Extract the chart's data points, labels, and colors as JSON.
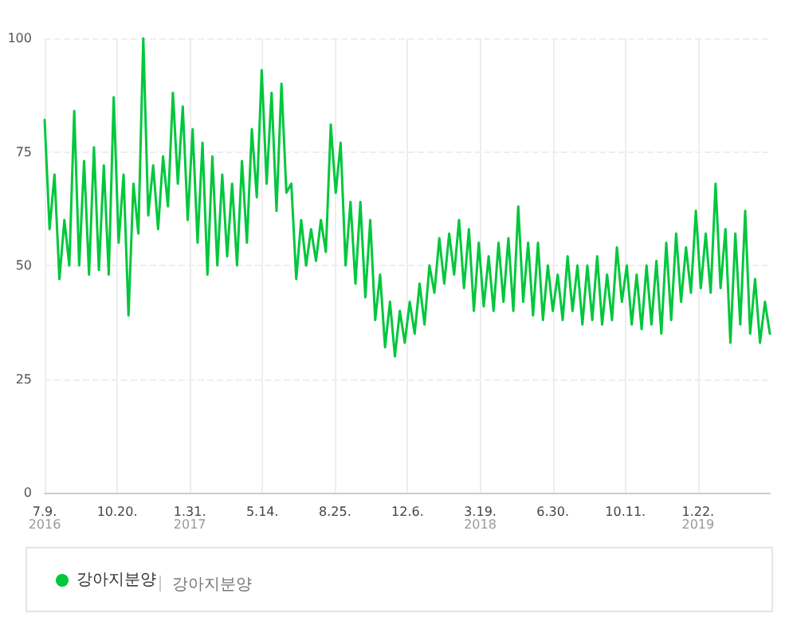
{
  "chart_data": {
    "type": "line",
    "legend": "bottom",
    "grid": true,
    "marker": "none",
    "line_style": "solid",
    "annotations": [
      "강아지분양"
    ],
    "xlim": [
      "2016-07-09",
      "2019-05-04"
    ],
    "xticks": [
      {
        "value": "2016-07-09",
        "label": "7.9.\n2016"
      },
      {
        "value": "2016-10-20",
        "label": "10.20."
      },
      {
        "value": "2017-01-31",
        "label": "1.31.\n2017"
      },
      {
        "value": "2017-05-14",
        "label": "5.14."
      },
      {
        "value": "2017-08-25",
        "label": "8.25."
      },
      {
        "value": "2017-12-06",
        "label": "12.6."
      },
      {
        "value": "2018-03-19",
        "label": "3.19.\n2018"
      },
      {
        "value": "2018-06-30",
        "label": "6.30."
      },
      {
        "value": "2018-10-11",
        "label": "10.11."
      },
      {
        "value": "2019-01-22",
        "label": "1.22.\n2019"
      }
    ],
    "ylim": [
      0,
      100
    ],
    "yticks": [
      0,
      25,
      50,
      75,
      100
    ],
    "x": [
      "2016-07-09",
      "2016-07-16",
      "2016-07-23",
      "2016-07-30",
      "2016-08-06",
      "2016-08-13",
      "2016-08-20",
      "2016-08-27",
      "2016-09-03",
      "2016-09-10",
      "2016-09-17",
      "2016-09-24",
      "2016-10-01",
      "2016-10-08",
      "2016-10-15",
      "2016-10-22",
      "2016-10-29",
      "2016-11-05",
      "2016-11-12",
      "2016-11-19",
      "2016-11-26",
      "2016-12-03",
      "2016-12-10",
      "2016-12-17",
      "2016-12-24",
      "2016-12-31",
      "2017-01-07",
      "2017-01-14",
      "2017-01-21",
      "2017-01-28",
      "2017-02-04",
      "2017-02-11",
      "2017-02-18",
      "2017-02-25",
      "2017-03-04",
      "2017-03-11",
      "2017-03-18",
      "2017-03-25",
      "2017-04-01",
      "2017-04-08",
      "2017-04-15",
      "2017-04-22",
      "2017-04-29",
      "2017-05-06",
      "2017-05-13",
      "2017-05-20",
      "2017-05-27",
      "2017-06-03",
      "2017-06-10",
      "2017-06-17",
      "2017-06-24",
      "2017-07-01",
      "2017-07-08",
      "2017-07-15",
      "2017-07-22",
      "2017-07-29",
      "2017-08-05",
      "2017-08-12",
      "2017-08-19",
      "2017-08-26",
      "2017-09-02",
      "2017-09-09",
      "2017-09-16",
      "2017-09-23",
      "2017-09-30",
      "2017-10-07",
      "2017-10-14",
      "2017-10-21",
      "2017-10-28",
      "2017-11-04",
      "2017-11-11",
      "2017-11-18",
      "2017-11-25",
      "2017-12-02",
      "2017-12-09",
      "2017-12-16",
      "2017-12-23",
      "2017-12-30",
      "2018-01-06",
      "2018-01-13",
      "2018-01-20",
      "2018-01-27",
      "2018-02-03",
      "2018-02-10",
      "2018-02-17",
      "2018-02-24",
      "2018-03-03",
      "2018-03-10",
      "2018-03-17",
      "2018-03-24",
      "2018-03-31",
      "2018-04-07",
      "2018-04-14",
      "2018-04-21",
      "2018-04-28",
      "2018-05-05",
      "2018-05-12",
      "2018-05-19",
      "2018-05-26",
      "2018-06-02",
      "2018-06-09",
      "2018-06-16",
      "2018-06-23",
      "2018-06-30",
      "2018-07-07",
      "2018-07-14",
      "2018-07-21",
      "2018-07-28",
      "2018-08-04",
      "2018-08-11",
      "2018-08-18",
      "2018-08-25",
      "2018-09-01",
      "2018-09-08",
      "2018-09-15",
      "2018-09-22",
      "2018-09-29",
      "2018-10-06",
      "2018-10-13",
      "2018-10-20",
      "2018-10-27",
      "2018-11-03",
      "2018-11-10",
      "2018-11-17",
      "2018-11-24",
      "2018-12-01",
      "2018-12-08",
      "2018-12-15",
      "2018-12-22",
      "2018-12-29",
      "2019-01-05",
      "2019-01-12",
      "2019-01-19",
      "2019-01-26",
      "2019-02-02",
      "2019-02-09",
      "2019-02-16",
      "2019-02-23",
      "2019-03-02",
      "2019-03-09",
      "2019-03-16",
      "2019-03-23",
      "2019-03-30",
      "2019-04-06",
      "2019-04-13",
      "2019-04-20",
      "2019-04-27",
      "2019-05-04"
    ],
    "series": [
      {
        "name": "강아지분양",
        "color": "#00c73c",
        "values": [
          82,
          58,
          70,
          47,
          60,
          50,
          84,
          50,
          73,
          48,
          76,
          49,
          72,
          48,
          87,
          55,
          70,
          39,
          68,
          57,
          100,
          61,
          72,
          58,
          74,
          63,
          88,
          68,
          85,
          60,
          80,
          55,
          77,
          48,
          74,
          50,
          70,
          52,
          68,
          50,
          73,
          55,
          80,
          65,
          93,
          68,
          88,
          62,
          90,
          66,
          68,
          47,
          60,
          50,
          58,
          51,
          60,
          53,
          81,
          66,
          77,
          50,
          64,
          46,
          64,
          43,
          60,
          38,
          48,
          32,
          42,
          30,
          40,
          33,
          42,
          35,
          46,
          37,
          50,
          44,
          56,
          46,
          57,
          48,
          60,
          45,
          58,
          40,
          55,
          41,
          52,
          40,
          55,
          42,
          56,
          40,
          63,
          42,
          55,
          39,
          55,
          38,
          50,
          40,
          48,
          38,
          52,
          40,
          50,
          37,
          50,
          38,
          52,
          37,
          48,
          38,
          54,
          42,
          50,
          37,
          48,
          36,
          50,
          37,
          51,
          35,
          55,
          38,
          57,
          42,
          54,
          44,
          62,
          45,
          57,
          44,
          68,
          45,
          58,
          33,
          57,
          37,
          62,
          35,
          47,
          33,
          42,
          35
        ]
      }
    ]
  }
}
